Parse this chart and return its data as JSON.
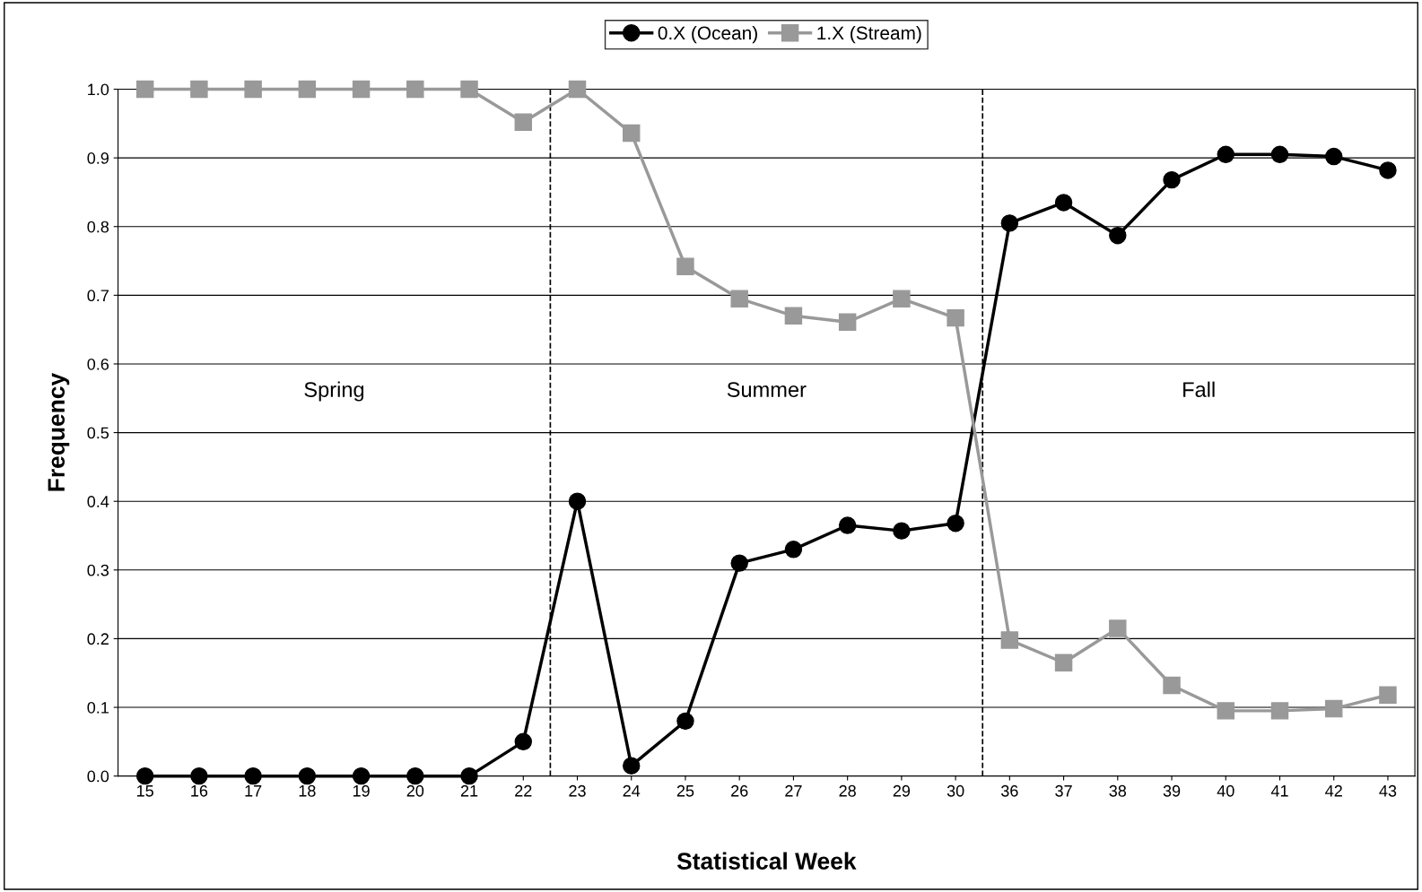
{
  "chart_data": {
    "type": "line",
    "xlabel": "Statistical Week",
    "ylabel": "Frequency",
    "categories": [
      "15",
      "16",
      "17",
      "18",
      "19",
      "20",
      "21",
      "22",
      "23",
      "24",
      "25",
      "26",
      "27",
      "28",
      "29",
      "30",
      "36",
      "37",
      "38",
      "39",
      "40",
      "41",
      "42",
      "43"
    ],
    "series": [
      {
        "name": "0.X (Ocean)",
        "color": "#000000",
        "marker": "circle",
        "values": [
          0,
          0,
          0,
          0,
          0,
          0,
          0,
          0.05,
          0.4,
          0.015,
          0.08,
          0.31,
          0.33,
          0.365,
          0.357,
          0.368,
          0.805,
          0.835,
          0.787,
          0.868,
          0.905,
          0.905,
          0.902,
          0.882
        ]
      },
      {
        "name": "1.X (Stream)",
        "color": "#999999",
        "marker": "square",
        "values": [
          1.0,
          1.0,
          1.0,
          1.0,
          1.0,
          1.0,
          1.0,
          0.952,
          1.0,
          0.936,
          0.742,
          0.695,
          0.67,
          0.661,
          0.695,
          0.667,
          0.198,
          0.165,
          0.215,
          0.132,
          0.095,
          0.095,
          0.098,
          0.118
        ]
      }
    ],
    "ylim": [
      0,
      1.0
    ],
    "yticks": [
      {
        "value": 0,
        "label": "0.0"
      },
      0.1,
      0.2,
      0.3,
      0.4,
      0.5,
      0.6,
      0.7,
      0.8,
      0.9,
      {
        "value": 1.0,
        "label": "1.0"
      }
    ],
    "grid": "y",
    "legend": "top",
    "line_style": "solid",
    "annotations": [
      "Spring",
      "Summer",
      "Fall"
    ]
  }
}
